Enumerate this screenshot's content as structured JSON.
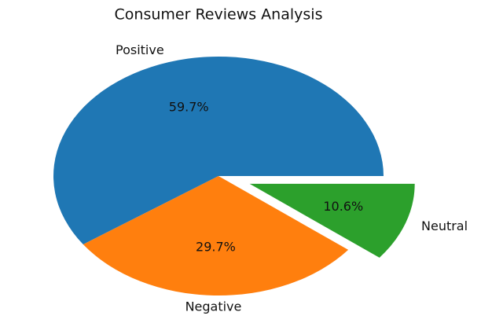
{
  "chart_data": {
    "type": "pie",
    "title": "Consumer Reviews Analysis",
    "categories": [
      "Positive",
      "Negative",
      "Neutral"
    ],
    "values": [
      59.7,
      29.7,
      10.6
    ],
    "value_labels": [
      "59.7%",
      "29.7%",
      "10.6%"
    ],
    "colors": [
      "#1f77b4",
      "#ff7f0e",
      "#2ca02c"
    ],
    "explode": [
      0,
      0,
      0.2
    ]
  }
}
